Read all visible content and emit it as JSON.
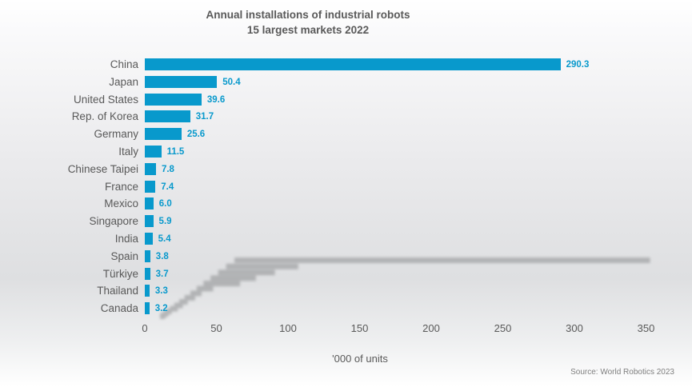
{
  "title": {
    "line1": "Annual installations of industrial robots",
    "line2": "15 largest markets 2022"
  },
  "chart_data": {
    "type": "bar",
    "orientation": "horizontal",
    "title": "Annual installations of industrial robots",
    "subtitle": "15 largest markets 2022",
    "categories": [
      "China",
      "Japan",
      "United States",
      "Rep. of Korea",
      "Germany",
      "Italy",
      "Chinese Taipei",
      "France",
      "Mexico",
      "Singapore",
      "India",
      "Spain",
      "Türkiye",
      "Thailand",
      "Canada"
    ],
    "values": [
      290.3,
      50.4,
      39.6,
      31.7,
      25.6,
      11.5,
      7.8,
      7.4,
      6.0,
      5.9,
      5.4,
      3.8,
      3.7,
      3.3,
      3.2
    ],
    "value_labels": [
      "290.3",
      "50.4",
      "39.6",
      "31.7",
      "25.6",
      "11.5",
      "7.8",
      "7.4",
      "6.0",
      "5.9",
      "5.4",
      "3.8",
      "3.7",
      "3.3",
      "3.2"
    ],
    "x_ticks": [
      0,
      50,
      100,
      150,
      200,
      250,
      300,
      350
    ],
    "xlim": [
      0,
      350
    ],
    "xlabel": "'000 of units",
    "grid": false,
    "legend": false,
    "bar_color": "#0899cc",
    "value_label_color": "#0899cc",
    "category_label_color": "#595959",
    "tick_label_color": "#595959",
    "title_color": "#595959",
    "shadow_color": "#939496"
  },
  "source": {
    "text": "Source: World Robotics 2023"
  }
}
